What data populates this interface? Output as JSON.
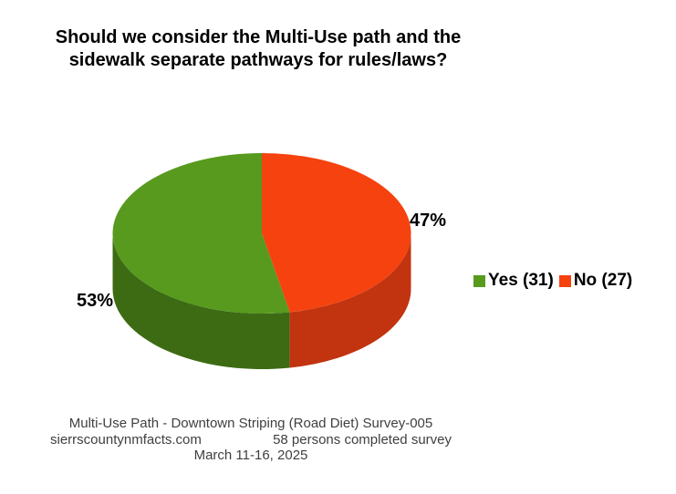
{
  "title": {
    "line1": "Should we consider the Multi-Use path and the",
    "line2": "sidewalk separate pathways for rules/laws?"
  },
  "chart_data": {
    "type": "pie",
    "style": "3d",
    "title": "Should we consider the Multi-Use path and the sidewalk separate pathways for rules/laws?",
    "direction": "counterclockwise",
    "start_angle_deg": 0,
    "legend_position": "right",
    "total_responses": 58,
    "slices": [
      {
        "label": "Yes",
        "count": 31,
        "percent": 53,
        "percent_label": "53%",
        "legend_label": "Yes (31)",
        "color": "#579A1E",
        "side_color": "#3D6B14"
      },
      {
        "label": "No",
        "count": 27,
        "percent": 47,
        "percent_label": "47%",
        "legend_label": "No (27)",
        "color": "#F5420F",
        "side_color": "#C23310"
      }
    ]
  },
  "footer": {
    "line1": "Multi-Use Path - Downtown Striping (Road Diet) Survey-005",
    "source": "sierrscountynmfacts.com",
    "completed": "58 persons completed survey",
    "dates": "March 11-16, 2025"
  }
}
